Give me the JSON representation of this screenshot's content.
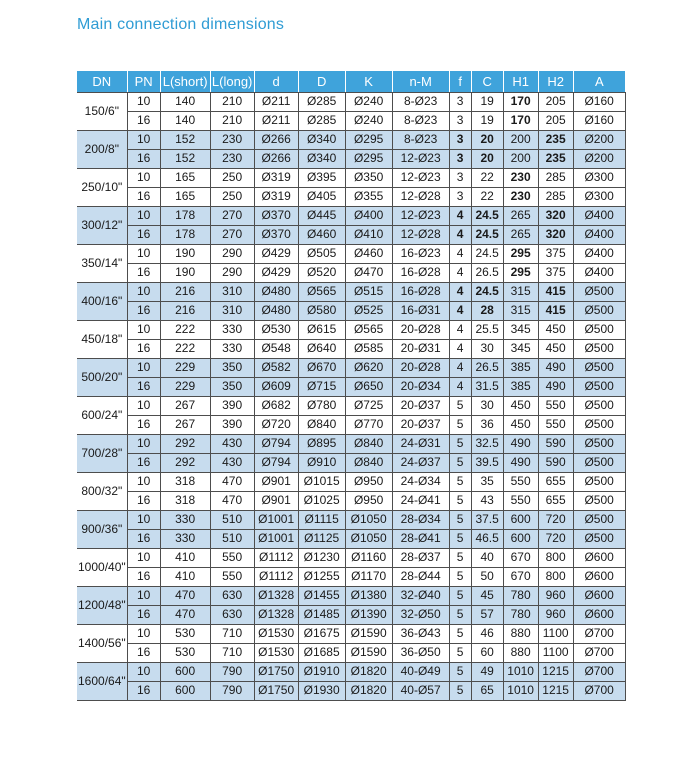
{
  "title": "Main connection dimensions",
  "colors": {
    "title": "#2f9cd4",
    "header_bg": "#3fa3db",
    "band_bg": "#c7dcee",
    "border": "#4d4d4d",
    "text": "#1a1a1a"
  },
  "table": {
    "headers": [
      "DN",
      "PN",
      "L(short)",
      "L(long)",
      "d",
      "D",
      "K",
      "n-M",
      "f",
      "C",
      "H1",
      "H2",
      "A"
    ],
    "groups": [
      {
        "dn": "150/6\"",
        "bold_cols": [
          9
        ],
        "rows": [
          [
            10,
            140,
            210,
            "Ø211",
            "Ø285",
            "Ø240",
            "8-Ø23",
            3,
            19,
            170,
            205,
            "Ø160"
          ],
          [
            16,
            140,
            210,
            "Ø211",
            "Ø285",
            "Ø240",
            "8-Ø23",
            3,
            19,
            170,
            205,
            "Ø160"
          ]
        ]
      },
      {
        "dn": "200/8\"",
        "bold_cols": [
          7,
          8,
          10
        ],
        "rows": [
          [
            10,
            152,
            230,
            "Ø266",
            "Ø340",
            "Ø295",
            "8-Ø23",
            3,
            20,
            200,
            235,
            "Ø200"
          ],
          [
            16,
            152,
            230,
            "Ø266",
            "Ø340",
            "Ø295",
            "12-Ø23",
            3,
            20,
            200,
            235,
            "Ø200"
          ]
        ]
      },
      {
        "dn": "250/10\"",
        "bold_cols": [
          9
        ],
        "rows": [
          [
            10,
            165,
            250,
            "Ø319",
            "Ø395",
            "Ø350",
            "12-Ø23",
            3,
            22,
            230,
            285,
            "Ø300"
          ],
          [
            16,
            165,
            250,
            "Ø319",
            "Ø405",
            "Ø355",
            "12-Ø28",
            3,
            22,
            230,
            285,
            "Ø300"
          ]
        ]
      },
      {
        "dn": "300/12\"",
        "bold_cols": [
          7,
          8,
          10
        ],
        "rows": [
          [
            10,
            178,
            270,
            "Ø370",
            "Ø445",
            "Ø400",
            "12-Ø23",
            4,
            24.5,
            265,
            320,
            "Ø400"
          ],
          [
            16,
            178,
            270,
            "Ø370",
            "Ø460",
            "Ø410",
            "12-Ø28",
            4,
            24.5,
            265,
            320,
            "Ø400"
          ]
        ]
      },
      {
        "dn": "350/14\"",
        "bold_cols": [
          9
        ],
        "rows": [
          [
            10,
            190,
            290,
            "Ø429",
            "Ø505",
            "Ø460",
            "16-Ø23",
            4,
            24.5,
            295,
            375,
            "Ø400"
          ],
          [
            16,
            190,
            290,
            "Ø429",
            "Ø520",
            "Ø470",
            "16-Ø28",
            4,
            26.5,
            295,
            375,
            "Ø400"
          ]
        ]
      },
      {
        "dn": "400/16\"",
        "bold_cols": [
          7,
          8,
          10
        ],
        "rows": [
          [
            10,
            216,
            310,
            "Ø480",
            "Ø565",
            "Ø515",
            "16-Ø28",
            4,
            24.5,
            315,
            415,
            "Ø500"
          ],
          [
            16,
            216,
            310,
            "Ø480",
            "Ø580",
            "Ø525",
            "16-Ø31",
            4,
            28,
            315,
            415,
            "Ø500"
          ]
        ]
      },
      {
        "dn": "450/18\"",
        "bold_cols": [],
        "rows": [
          [
            10,
            222,
            330,
            "Ø530",
            "Ø615",
            "Ø565",
            "20-Ø28",
            4,
            25.5,
            345,
            450,
            "Ø500"
          ],
          [
            16,
            222,
            330,
            "Ø548",
            "Ø640",
            "Ø585",
            "20-Ø31",
            4,
            30,
            345,
            450,
            "Ø500"
          ]
        ]
      },
      {
        "dn": "500/20\"",
        "bold_cols": [],
        "rows": [
          [
            10,
            229,
            350,
            "Ø582",
            "Ø670",
            "Ø620",
            "20-Ø28",
            4,
            26.5,
            385,
            490,
            "Ø500"
          ],
          [
            16,
            229,
            350,
            "Ø609",
            "Ø715",
            "Ø650",
            "20-Ø34",
            4,
            31.5,
            385,
            490,
            "Ø500"
          ]
        ]
      },
      {
        "dn": "600/24\"",
        "bold_cols": [],
        "rows": [
          [
            10,
            267,
            390,
            "Ø682",
            "Ø780",
            "Ø725",
            "20-Ø37",
            5,
            30,
            450,
            550,
            "Ø500"
          ],
          [
            16,
            267,
            390,
            "Ø720",
            "Ø840",
            "Ø770",
            "20-Ø37",
            5,
            36,
            450,
            550,
            "Ø500"
          ]
        ]
      },
      {
        "dn": "700/28\"",
        "bold_cols": [],
        "rows": [
          [
            10,
            292,
            430,
            "Ø794",
            "Ø895",
            "Ø840",
            "24-Ø31",
            5,
            32.5,
            490,
            590,
            "Ø500"
          ],
          [
            16,
            292,
            430,
            "Ø794",
            "Ø910",
            "Ø840",
            "24-Ø37",
            5,
            39.5,
            490,
            590,
            "Ø500"
          ]
        ]
      },
      {
        "dn": "800/32\"",
        "bold_cols": [],
        "rows": [
          [
            10,
            318,
            470,
            "Ø901",
            "Ø1015",
            "Ø950",
            "24-Ø34",
            5,
            35,
            550,
            655,
            "Ø500"
          ],
          [
            16,
            318,
            470,
            "Ø901",
            "Ø1025",
            "Ø950",
            "24-Ø41",
            5,
            43,
            550,
            655,
            "Ø500"
          ]
        ]
      },
      {
        "dn": "900/36\"",
        "bold_cols": [],
        "rows": [
          [
            10,
            330,
            510,
            "Ø1001",
            "Ø1115",
            "Ø1050",
            "28-Ø34",
            5,
            37.5,
            600,
            720,
            "Ø500"
          ],
          [
            16,
            330,
            510,
            "Ø1001",
            "Ø1125",
            "Ø1050",
            "28-Ø41",
            5,
            46.5,
            600,
            720,
            "Ø500"
          ]
        ]
      },
      {
        "dn": "1000/40\"",
        "bold_cols": [],
        "rows": [
          [
            10,
            410,
            550,
            "Ø1112",
            "Ø1230",
            "Ø1160",
            "28-Ø37",
            5,
            40,
            670,
            800,
            "Ø600"
          ],
          [
            16,
            410,
            550,
            "Ø1112",
            "Ø1255",
            "Ø1170",
            "28-Ø44",
            5,
            50,
            670,
            800,
            "Ø600"
          ]
        ]
      },
      {
        "dn": "1200/48\"",
        "bold_cols": [],
        "rows": [
          [
            10,
            470,
            630,
            "Ø1328",
            "Ø1455",
            "Ø1380",
            "32-Ø40",
            5,
            45,
            780,
            960,
            "Ø600"
          ],
          [
            16,
            470,
            630,
            "Ø1328",
            "Ø1485",
            "Ø1390",
            "32-Ø50",
            5,
            57,
            780,
            960,
            "Ø600"
          ]
        ]
      },
      {
        "dn": "1400/56\"",
        "bold_cols": [],
        "rows": [
          [
            10,
            530,
            710,
            "Ø1530",
            "Ø1675",
            "Ø1590",
            "36-Ø43",
            5,
            46,
            880,
            1100,
            "Ø700"
          ],
          [
            16,
            530,
            710,
            "Ø1530",
            "Ø1685",
            "Ø1590",
            "36-Ø50",
            5,
            60,
            880,
            1100,
            "Ø700"
          ]
        ]
      },
      {
        "dn": "1600/64\"",
        "bold_cols": [],
        "rows": [
          [
            10,
            600,
            790,
            "Ø1750",
            "Ø1910",
            "Ø1820",
            "40-Ø49",
            5,
            49,
            1010,
            1215,
            "Ø700"
          ],
          [
            16,
            600,
            790,
            "Ø1750",
            "Ø1930",
            "Ø1820",
            "40-Ø57",
            5,
            65,
            1010,
            1215,
            "Ø700"
          ]
        ]
      }
    ]
  }
}
